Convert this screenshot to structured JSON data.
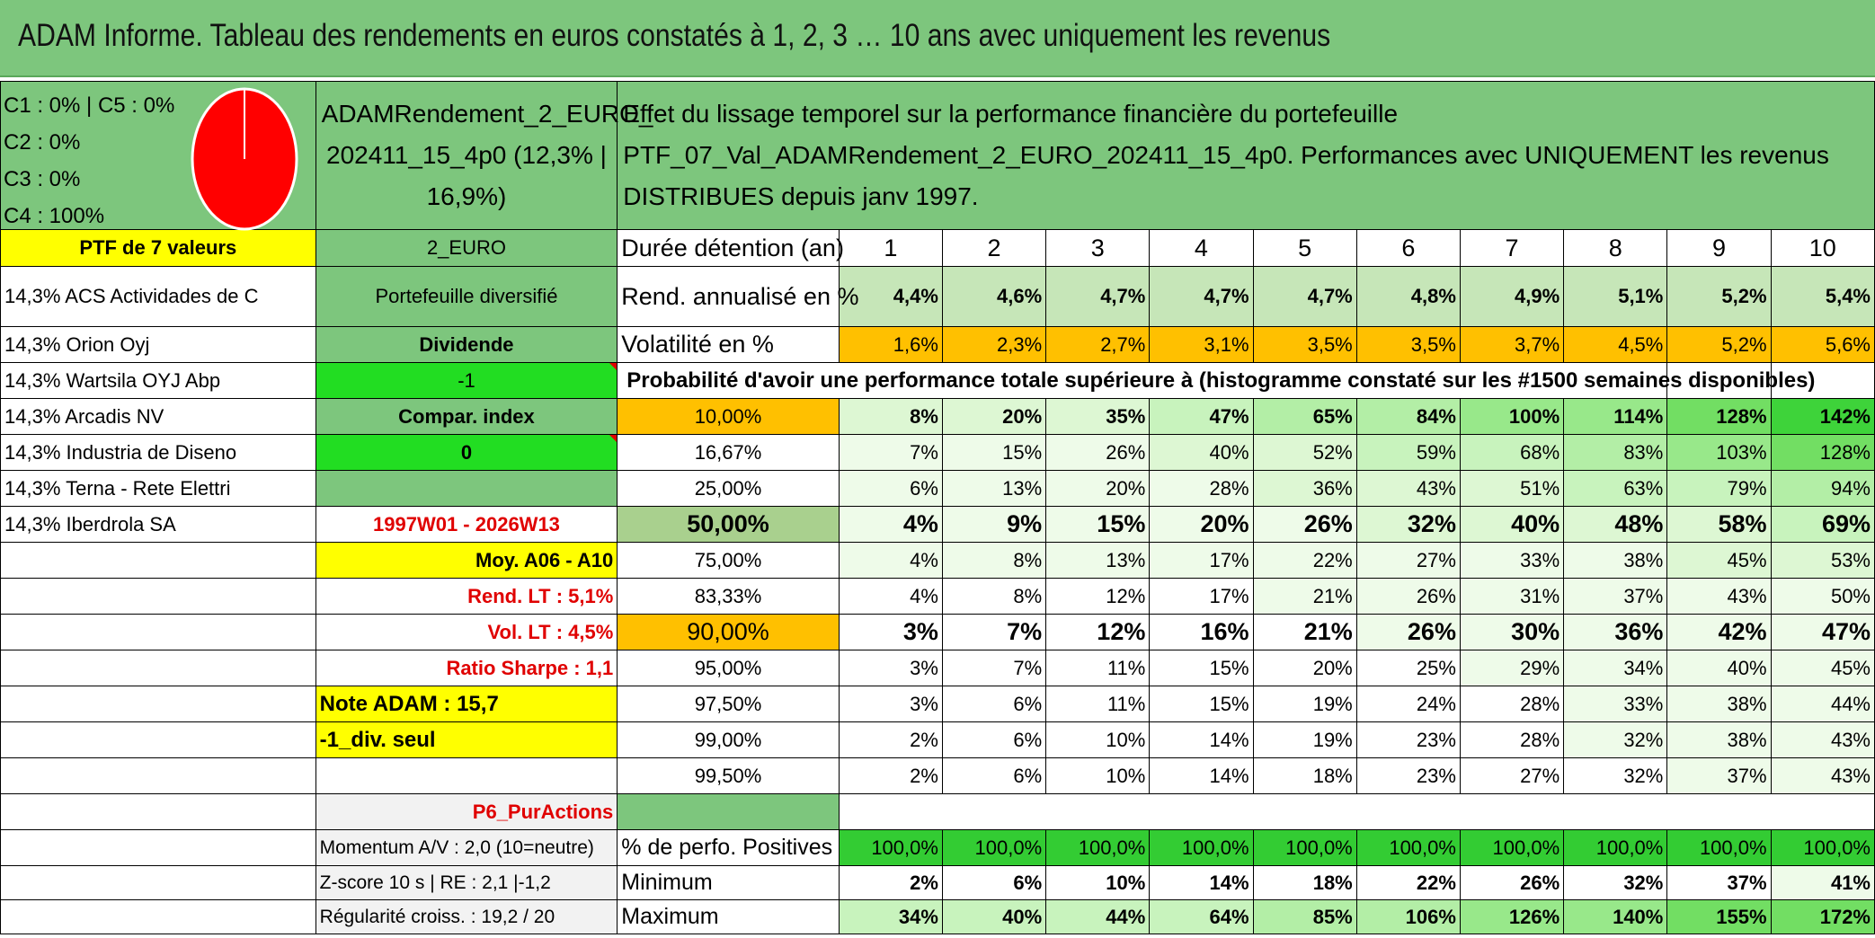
{
  "title": "ADAM Informe. Tableau des rendements en euros constatés à 1, 2, 3 … 10 ans avec uniquement les revenus",
  "legend": {
    "c1c5": "C1 : 0% | C5 : 0%",
    "c2": "C2 : 0%",
    "c3": "C3 : 0%",
    "c4": "C4 : 100%"
  },
  "pie_color": "#ff0000",
  "portfolio_name": "ADAMRendement_2_EURO_ 202411_15_4p0 (12,3% | 16,9%)",
  "description": "Effet du lissage temporel sur la performance financière du portefeuille PTF_07_Val_ADAMRendement_2_EURO_202411_15_4p0. Performances avec UNIQUEMENT les revenus DISTRIBUES depuis janv 1997.",
  "ptf_count": "PTF de 7 valeurs",
  "currency": "2_EURO",
  "duration_label": "Durée détention (an)",
  "years": [
    "1",
    "2",
    "3",
    "4",
    "5",
    "6",
    "7",
    "8",
    "9",
    "10"
  ],
  "holdings": [
    "14,3% ACS Actividades de C",
    "14,3% Orion Oyj",
    "14,3% Wartsila OYJ Abp",
    "14,3% Arcadis NV",
    "14,3% Industria de Diseno",
    "14,3% Terna - Rete Elettri",
    "14,3% Iberdrola SA"
  ],
  "side": {
    "type": "Portefeuille diversifié",
    "income": "Dividende",
    "v1": "-1",
    "compar": "Compar. index",
    "v2": "0",
    "period": "1997W01 - 2026W13",
    "moy": "Moy. A06 - A10",
    "rend_lt": "Rend. LT : 5,1%",
    "vol_lt": "Vol. LT : 4,5%",
    "sharpe": "Ratio Sharpe : 1,1",
    "note": "Note ADAM : 15,7",
    "div": "-1_div. seul",
    "sheet": "P6_PurActions",
    "momentum": "Momentum A/V : 2,0 (10=neutre)",
    "zscore": "Z-score 10 s | RE : 2,1 |-1,2",
    "regularite": "Régularité croiss. : 19,2 / 20"
  },
  "rend_label": "Rend. annualisé en %",
  "rend": [
    "4,4%",
    "4,6%",
    "4,7%",
    "4,7%",
    "4,7%",
    "4,8%",
    "4,9%",
    "5,1%",
    "5,2%",
    "5,4%"
  ],
  "vol_label": "Volatilité en %",
  "vol": [
    "1,6%",
    "2,3%",
    "2,7%",
    "3,1%",
    "3,5%",
    "3,5%",
    "3,7%",
    "4,5%",
    "5,2%",
    "5,6%"
  ],
  "prob_title": "Probabilité d'avoir une performance totale supérieure à (histogramme constaté sur les #1500 semaines disponibles)",
  "prob_rows": [
    {
      "p": "10,00%",
      "v": [
        "8%",
        "20%",
        "35%",
        "47%",
        "65%",
        "84%",
        "100%",
        "114%",
        "128%",
        "142%"
      ]
    },
    {
      "p": "16,67%",
      "v": [
        "7%",
        "15%",
        "26%",
        "40%",
        "52%",
        "59%",
        "68%",
        "83%",
        "103%",
        "128%"
      ]
    },
    {
      "p": "25,00%",
      "v": [
        "6%",
        "13%",
        "20%",
        "28%",
        "36%",
        "43%",
        "51%",
        "63%",
        "79%",
        "94%"
      ]
    },
    {
      "p": "50,00%",
      "v": [
        "4%",
        "9%",
        "15%",
        "20%",
        "26%",
        "32%",
        "40%",
        "48%",
        "58%",
        "69%"
      ]
    },
    {
      "p": "75,00%",
      "v": [
        "4%",
        "8%",
        "13%",
        "17%",
        "22%",
        "27%",
        "33%",
        "38%",
        "45%",
        "53%"
      ]
    },
    {
      "p": "83,33%",
      "v": [
        "4%",
        "8%",
        "12%",
        "17%",
        "21%",
        "26%",
        "31%",
        "37%",
        "43%",
        "50%"
      ]
    },
    {
      "p": "90,00%",
      "v": [
        "3%",
        "7%",
        "12%",
        "16%",
        "21%",
        "26%",
        "30%",
        "36%",
        "42%",
        "47%"
      ]
    },
    {
      "p": "95,00%",
      "v": [
        "3%",
        "7%",
        "11%",
        "15%",
        "20%",
        "25%",
        "29%",
        "34%",
        "40%",
        "45%"
      ]
    },
    {
      "p": "97,50%",
      "v": [
        "3%",
        "6%",
        "11%",
        "15%",
        "19%",
        "24%",
        "28%",
        "33%",
        "38%",
        "44%"
      ]
    },
    {
      "p": "99,00%",
      "v": [
        "2%",
        "6%",
        "10%",
        "14%",
        "19%",
        "23%",
        "28%",
        "32%",
        "38%",
        "43%"
      ]
    },
    {
      "p": "99,50%",
      "v": [
        "2%",
        "6%",
        "10%",
        "14%",
        "18%",
        "23%",
        "27%",
        "32%",
        "37%",
        "43%"
      ]
    }
  ],
  "pos_label": "% de perfo. Positives",
  "pos": [
    "100,0%",
    "100,0%",
    "100,0%",
    "100,0%",
    "100,0%",
    "100,0%",
    "100,0%",
    "100,0%",
    "100,0%",
    "100,0%"
  ],
  "min_label": "Minimum",
  "min": [
    "2%",
    "6%",
    "10%",
    "14%",
    "18%",
    "22%",
    "26%",
    "32%",
    "37%",
    "41%"
  ],
  "max_label": "Maximum",
  "max": [
    "34%",
    "40%",
    "44%",
    "64%",
    "85%",
    "106%",
    "126%",
    "140%",
    "155%",
    "172%"
  ]
}
